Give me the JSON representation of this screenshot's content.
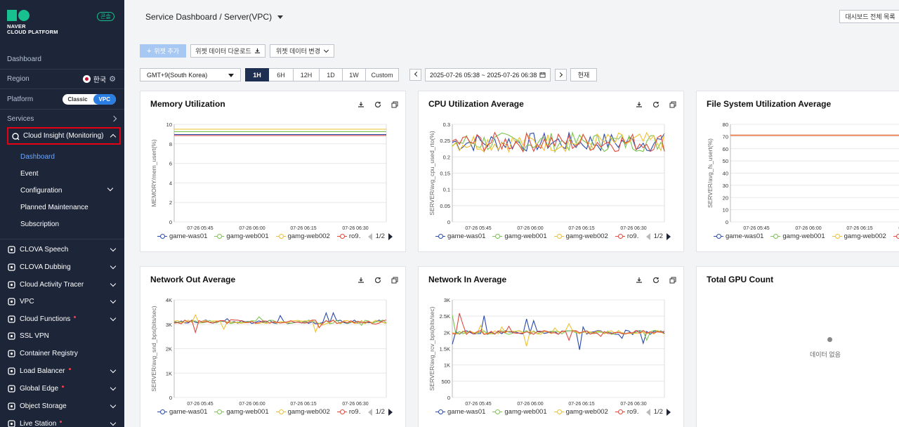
{
  "brand": {
    "line1": "NAVER",
    "line2": "CLOUD PLATFORM",
    "badge": "콘솔",
    "color": "#19c08f"
  },
  "sidebar": {
    "dashboard": "Dashboard",
    "region_label": "Region",
    "region_value": "한국",
    "platform_label": "Platform",
    "platform_options": [
      "Classic",
      "VPC"
    ],
    "platform_selected": "VPC",
    "services_label": "Services",
    "cloud_insight": "Cloud Insight (Monitoring)",
    "sub_items": [
      "Dashboard",
      "Event",
      "Configuration",
      "Planned Maintenance",
      "Subscription"
    ],
    "services": [
      {
        "label": "CLOVA Speech",
        "icon": "speech-icon",
        "new": false
      },
      {
        "label": "CLOVA Dubbing",
        "icon": "dubbing-icon",
        "new": false
      },
      {
        "label": "Cloud Activity Tracer",
        "icon": "tracer-icon",
        "new": false
      },
      {
        "label": "VPC",
        "icon": "vpc-icon",
        "new": false
      },
      {
        "label": "Cloud Functions",
        "icon": "functions-icon",
        "new": true
      },
      {
        "label": "SSL VPN",
        "icon": "vpn-icon",
        "new": false
      },
      {
        "label": "Container Registry",
        "icon": "registry-icon",
        "new": false
      },
      {
        "label": "Load Balancer",
        "icon": "load-balancer-icon",
        "new": true
      },
      {
        "label": "Global Edge",
        "icon": "edge-icon",
        "new": true
      },
      {
        "label": "Object Storage",
        "icon": "storage-icon",
        "new": false
      },
      {
        "label": "Live Station",
        "icon": "live-icon",
        "new": true
      }
    ]
  },
  "header": {
    "breadcrumb": "Service Dashboard / Server(VPC)",
    "all_dashboards": "대시보드 전체 목록"
  },
  "toolbar": {
    "add_widget": "위젯 추가",
    "download": "위젯 데이터 다운로드",
    "change": "위젯 데이터 변경",
    "timezone": "GMT+9(South Korea)",
    "ranges": [
      "1H",
      "6H",
      "12H",
      "1D",
      "1W",
      "Custom"
    ],
    "range_selected": "1H",
    "time_range": "2025-07-26 05:38 ~ 2025-07-26 06:38",
    "now": "현재"
  },
  "legend": {
    "items": [
      "game-was01",
      "gamg-web001",
      "gamg-web002",
      "ro9․"
    ],
    "pager": "1/2"
  },
  "colors": {
    "was01": "#2b4aa8",
    "web001": "#7cc44f",
    "web002": "#f0c030",
    "ro9": "#e0483e",
    "fs": "#e8703a"
  },
  "x_ticks": [
    "07-26 05:45",
    "07-26 06:00",
    "07-26 06:15",
    "07-26 06:30"
  ],
  "empty_label": "데이터 없음",
  "chart_data": [
    {
      "type": "line",
      "title": "Memory Utilization",
      "ylabel": "MEMORY/mem_usert(%)",
      "ylim": [
        0,
        10
      ],
      "yticks": [
        "0",
        "2",
        "4",
        "6",
        "8",
        "10"
      ],
      "series": [
        {
          "name": "game-was01",
          "values": [
            8.95,
            8.95
          ]
        },
        {
          "name": "gamg-web001",
          "values": [
            9.25,
            9.25
          ]
        },
        {
          "name": "gamg-web002",
          "values": [
            9.5,
            9.5
          ]
        },
        {
          "name": "ro9․",
          "values": [
            8.85,
            8.85
          ]
        }
      ]
    },
    {
      "type": "line",
      "title": "CPU Utilization Average",
      "ylabel": "SERVER/avg_cpu_used_rto(%)",
      "ylim": [
        0,
        0.3
      ],
      "yticks": [
        "0",
        "0.05",
        "0.1",
        "0.15",
        "0.2",
        "0.25",
        "0.3"
      ],
      "series": [
        {
          "name": "game-was01"
        },
        {
          "name": "gamg-web001"
        },
        {
          "name": "gamg-web002"
        },
        {
          "name": "ro9․"
        }
      ]
    },
    {
      "type": "line",
      "title": "File System Utilization Average",
      "ylabel": "SERVER/avg_fs_usert(%)",
      "ylim": [
        0,
        80
      ],
      "yticks": [
        "0",
        "10",
        "20",
        "30",
        "40",
        "50",
        "60",
        "70",
        "80"
      ],
      "series": [
        {
          "name": "game-was01",
          "values": [
            71,
            71
          ]
        }
      ]
    },
    {
      "type": "line",
      "title": "Network Out Average",
      "ylabel": "SERVER/avg_snd_bps(bits/sec)",
      "ylim": [
        0,
        4000
      ],
      "yticks": [
        "0",
        "1K",
        "2K",
        "3K",
        "4K"
      ],
      "series": [
        {
          "name": "game-was01"
        },
        {
          "name": "gamg-web001"
        },
        {
          "name": "gamg-web002"
        },
        {
          "name": "ro9․"
        }
      ]
    },
    {
      "type": "line",
      "title": "Network In Average",
      "ylabel": "SERVER/avg_rcv_bps(bits/sec)",
      "ylim": [
        0,
        3000
      ],
      "yticks": [
        "0",
        "500",
        "1K",
        "1.5K",
        "2K",
        "2.5K",
        "3K"
      ],
      "series": [
        {
          "name": "game-was01"
        },
        {
          "name": "gamg-web001"
        },
        {
          "name": "gamg-web002"
        },
        {
          "name": "ro9․"
        }
      ]
    },
    {
      "type": "line",
      "title": "Total GPU Count",
      "series": []
    }
  ]
}
